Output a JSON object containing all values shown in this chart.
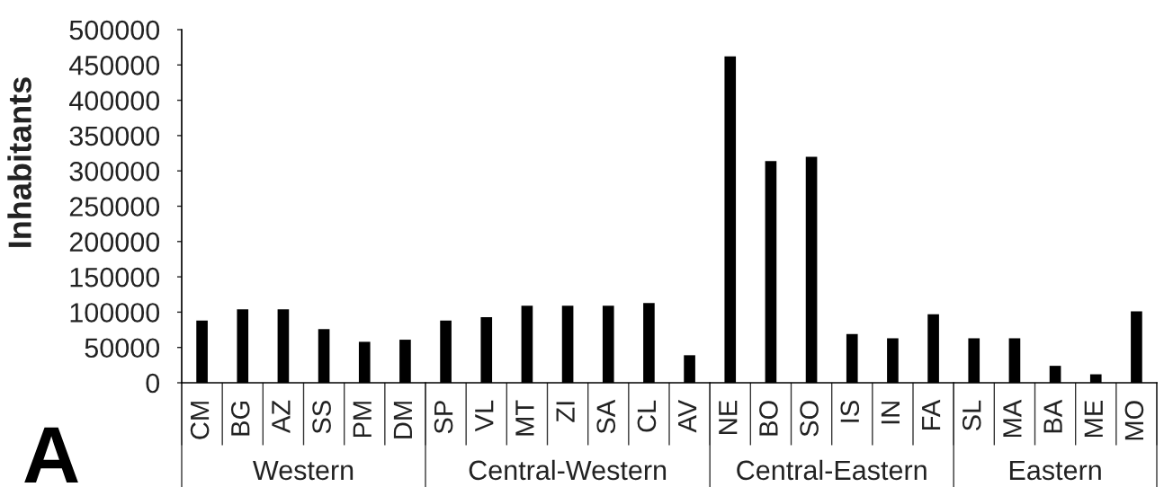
{
  "chart_data": {
    "type": "bar",
    "ylabel": "Inhabitants",
    "categories": [
      "CM",
      "BG",
      "AZ",
      "SS",
      "PM",
      "DM",
      "SP",
      "VL",
      "MT",
      "ZI",
      "SA",
      "CL",
      "AV",
      "NE",
      "BO",
      "SO",
      "IS",
      "IN",
      "FA",
      "SL",
      "MA",
      "BA",
      "ME",
      "MO"
    ],
    "values": [
      88000,
      104000,
      104000,
      76000,
      58000,
      61000,
      88000,
      93000,
      109000,
      109000,
      109000,
      113000,
      39000,
      462000,
      314000,
      320000,
      69000,
      63000,
      97000,
      63000,
      63000,
      24000,
      12000,
      101000
    ],
    "color": "#000000",
    "ylim": [
      0,
      500000
    ],
    "yticks": [
      0,
      50000,
      100000,
      150000,
      200000,
      250000,
      300000,
      350000,
      400000,
      450000,
      500000
    ],
    "annotations": [
      "A",
      "Western",
      "Central-Western",
      "Central-Eastern",
      "Eastern"
    ]
  }
}
